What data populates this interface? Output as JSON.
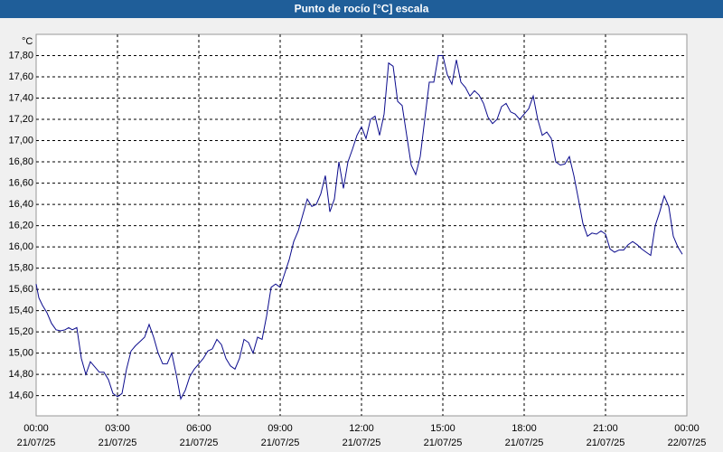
{
  "chart_data": {
    "type": "line",
    "title": "Punto de rocío [°C] escala",
    "y_unit": "°C",
    "x": [
      0,
      6,
      14,
      24,
      34,
      44,
      54,
      64,
      72,
      80,
      90,
      100,
      110,
      120,
      130,
      140,
      150,
      160,
      170,
      180,
      190,
      200,
      210,
      220,
      230,
      240,
      250,
      260,
      270,
      280,
      290,
      300,
      310,
      320,
      330,
      340,
      350,
      360,
      370,
      380,
      390,
      400,
      410,
      420,
      430,
      440,
      450,
      460,
      470,
      480,
      490,
      500,
      510,
      520,
      530,
      540,
      550,
      560,
      570,
      580,
      590,
      600,
      610,
      620,
      630,
      640,
      650,
      660,
      670,
      680,
      690,
      700,
      710,
      720,
      730,
      740,
      750,
      760,
      770,
      780,
      790,
      800,
      810,
      820,
      830,
      840,
      850,
      860,
      870,
      880,
      890,
      900,
      910,
      920,
      930,
      940,
      950,
      960,
      970,
      980,
      990,
      1000,
      1010,
      1020,
      1030,
      1040,
      1050,
      1060,
      1070,
      1080,
      1090,
      1100,
      1110,
      1120,
      1130,
      1140,
      1150,
      1160,
      1170,
      1180,
      1190,
      1200,
      1210,
      1220,
      1230,
      1240,
      1250,
      1260,
      1270,
      1280,
      1290,
      1300,
      1310,
      1320,
      1330,
      1340,
      1350,
      1360,
      1370,
      1380,
      1390,
      1400,
      1410,
      1420,
      1430
    ],
    "series": [
      {
        "name": "Punto de rocío",
        "color": "#0a0a8c",
        "values": [
          15.65,
          15.52,
          15.45,
          15.38,
          15.28,
          15.22,
          15.21,
          15.22,
          15.24,
          15.22,
          15.24,
          14.95,
          14.8,
          14.92,
          14.87,
          14.82,
          14.82,
          14.75,
          14.62,
          14.59,
          14.62,
          14.85,
          15.02,
          15.07,
          15.11,
          15.15,
          15.27,
          15.15,
          15.0,
          14.9,
          14.9,
          15.0,
          14.8,
          14.57,
          14.65,
          14.78,
          14.85,
          14.9,
          14.95,
          15.02,
          15.04,
          15.13,
          15.08,
          14.95,
          14.88,
          14.85,
          14.95,
          15.13,
          15.1,
          15.0,
          15.15,
          15.13,
          15.35,
          15.62,
          15.65,
          15.62,
          15.75,
          15.88,
          16.05,
          16.15,
          16.3,
          16.45,
          16.38,
          16.4,
          16.5,
          16.67,
          16.33,
          16.45,
          16.8,
          16.55,
          16.8,
          16.92,
          17.05,
          17.13,
          17.02,
          17.2,
          17.23,
          17.05,
          17.25,
          17.73,
          17.7,
          17.37,
          17.33,
          17.05,
          16.77,
          16.68,
          16.85,
          17.2,
          17.55,
          17.55,
          17.8,
          17.8,
          17.62,
          17.53,
          17.76,
          17.55,
          17.5,
          17.42,
          17.47,
          17.43,
          17.35,
          17.22,
          17.16,
          17.2,
          17.32,
          17.35,
          17.27,
          17.25,
          17.2,
          17.25,
          17.3,
          17.42,
          17.2,
          17.05,
          17.08,
          17.02,
          16.8,
          16.77,
          16.78,
          16.85,
          16.67,
          16.45,
          16.22,
          16.1,
          16.13,
          16.12,
          16.15,
          16.12,
          15.98,
          15.95,
          15.97,
          15.97,
          16.02,
          16.05,
          16.02,
          15.98,
          15.95,
          15.92,
          16.2,
          16.33,
          16.48,
          16.38,
          16.1,
          16.0,
          15.93
        ]
      }
    ],
    "xlim": [
      0,
      1440
    ],
    "xticks": [
      {
        "value": 0,
        "label": "00:00",
        "date": "21/07/25"
      },
      {
        "value": 180,
        "label": "03:00",
        "date": "21/07/25"
      },
      {
        "value": 360,
        "label": "06:00",
        "date": "21/07/25"
      },
      {
        "value": 540,
        "label": "09:00",
        "date": "21/07/25"
      },
      {
        "value": 720,
        "label": "12:00",
        "date": "21/07/25"
      },
      {
        "value": 900,
        "label": "15:00",
        "date": "21/07/25"
      },
      {
        "value": 1080,
        "label": "18:00",
        "date": "21/07/25"
      },
      {
        "value": 1260,
        "label": "21:00",
        "date": "21/07/25"
      },
      {
        "value": 1440,
        "label": "00:00",
        "date": "22/07/25"
      }
    ],
    "ylim": [
      14.41,
      18.0
    ],
    "yticks": [
      {
        "value": 14.6,
        "label": "14,60"
      },
      {
        "value": 14.8,
        "label": "14,80"
      },
      {
        "value": 15.0,
        "label": "15,00"
      },
      {
        "value": 15.2,
        "label": "15,20"
      },
      {
        "value": 15.4,
        "label": "15,40"
      },
      {
        "value": 15.6,
        "label": "15,60"
      },
      {
        "value": 15.8,
        "label": "15,80"
      },
      {
        "value": 16.0,
        "label": "16,00"
      },
      {
        "value": 16.2,
        "label": "16,20"
      },
      {
        "value": 16.4,
        "label": "16,40"
      },
      {
        "value": 16.6,
        "label": "16,60"
      },
      {
        "value": 16.8,
        "label": "16,80"
      },
      {
        "value": 17.0,
        "label": "17,00"
      },
      {
        "value": 17.2,
        "label": "17,20"
      },
      {
        "value": 17.4,
        "label": "17,40"
      },
      {
        "value": 17.6,
        "label": "17,60"
      },
      {
        "value": 17.8,
        "label": "17,80"
      }
    ],
    "grid": true
  }
}
